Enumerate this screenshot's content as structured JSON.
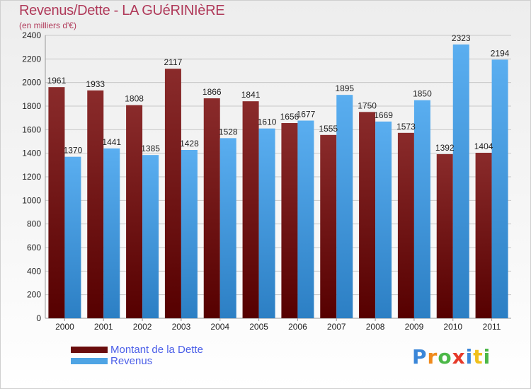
{
  "title": "Revenus/Dette - LA GUéRINIèRE",
  "subtitle": "(en milliers d'€)",
  "logo_text": "Proxiti",
  "colors": {
    "dette": "#7a1616",
    "revenus": "#4ea4e4",
    "grid": "#c8c8c8",
    "axis_text": "#222222",
    "title": "#b03a5a",
    "legend_text": "#4a5ee8"
  },
  "chart_data": {
    "type": "bar",
    "title": "Revenus/Dette - LA GUéRINIèRE",
    "subtitle": "(en milliers d'€)",
    "categories": [
      "2000",
      "2001",
      "2002",
      "2003",
      "2004",
      "2005",
      "2006",
      "2007",
      "2008",
      "2009",
      "2010",
      "2011"
    ],
    "series": [
      {
        "name": "Montant de la Dette",
        "values": [
          1961,
          1933,
          1808,
          2117,
          1866,
          1841,
          1656,
          1555,
          1750,
          1573,
          1392,
          1404
        ]
      },
      {
        "name": "Revenus",
        "values": [
          1370,
          1441,
          1385,
          1428,
          1528,
          1610,
          1677,
          1895,
          1669,
          1850,
          2323,
          2194
        ]
      }
    ],
    "ylim": [
      0,
      2400
    ],
    "yticks": [
      0,
      200,
      400,
      600,
      800,
      1000,
      1200,
      1400,
      1600,
      1800,
      2000,
      2200,
      2400
    ],
    "grid": true,
    "legend_position": "bottom-left"
  }
}
